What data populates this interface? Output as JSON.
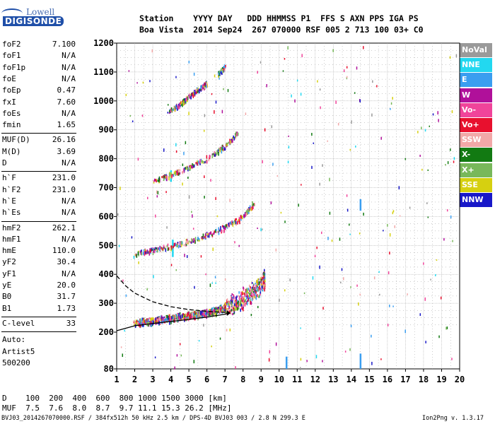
{
  "logo": {
    "line1": "Lowell",
    "line2": "DIGISONDE"
  },
  "header": {
    "row1": "Station    YYYY DAY   DDD HHMMSS P1  FFS S AXN PPS IGA PS",
    "row2": "Boa Vista  2014 Sep24  267 070000 RSF 005 2 713 100 03+ C0"
  },
  "params_group1": [
    {
      "label": "foF2",
      "value": "7.100"
    },
    {
      "label": "foF1",
      "value": "N/A"
    },
    {
      "label": "foF1p",
      "value": "N/A"
    },
    {
      "label": "foE",
      "value": "N/A"
    },
    {
      "label": "foEp",
      "value": "0.47"
    },
    {
      "label": "fxI",
      "value": "7.60"
    },
    {
      "label": "foEs",
      "value": "N/A"
    },
    {
      "label": "fmin",
      "value": "1.65"
    }
  ],
  "params_group2": [
    {
      "label": "MUF(D)",
      "value": "26.16"
    },
    {
      "label": "M(D)",
      "value": "3.69"
    },
    {
      "label": "D",
      "value": "N/A"
    }
  ],
  "params_group3": [
    {
      "label": "h`F",
      "value": "231.0"
    },
    {
      "label": "h`F2",
      "value": "231.0"
    },
    {
      "label": "h`E",
      "value": "N/A"
    },
    {
      "label": "h`Es",
      "value": "N/A"
    }
  ],
  "params_group4": [
    {
      "label": "hmF2",
      "value": "262.1"
    },
    {
      "label": "hmF1",
      "value": "N/A"
    },
    {
      "label": "hmE",
      "value": "110.0"
    },
    {
      "label": "yF2",
      "value": "30.4"
    },
    {
      "label": "yF1",
      "value": "N/A"
    },
    {
      "label": "yE",
      "value": "20.0"
    },
    {
      "label": "B0",
      "value": "31.7"
    },
    {
      "label": "B1",
      "value": "1.73"
    }
  ],
  "clevel": {
    "label": "C-level",
    "value": "33"
  },
  "auto_notes": [
    "Auto:",
    "Artist5",
    "500200"
  ],
  "legend": [
    {
      "label": "NoVal",
      "color": "#9a9a9a"
    },
    {
      "label": "NNE",
      "color": "#22d8f0"
    },
    {
      "label": "E",
      "color": "#3a9ef0"
    },
    {
      "label": "W",
      "color": "#b0109a"
    },
    {
      "label": "Vo-",
      "color": "#f0449a"
    },
    {
      "label": "Vo+",
      "color": "#e8102e"
    },
    {
      "label": "SSW",
      "color": "#f2a8a8"
    },
    {
      "label": "X-",
      "color": "#127a12"
    },
    {
      "label": "X+",
      "color": "#78b85a"
    },
    {
      "label": "SSE",
      "color": "#d6d010"
    },
    {
      "label": "NNW",
      "color": "#1818c8"
    }
  ],
  "mufd_table": {
    "row1": "D    100  200  400  600  800 1000 1500 3000 [km]",
    "row2": "MUF  7.5  7.6  8.0  8.7  9.7 11.1 15.3 26.2 [MHz]"
  },
  "footer": {
    "left": "BVJ03_2014267070000.RSF / 384fx512h 50 kHz 2.5 km / DPS-4D BVJ03 003 / 2.8 N 299.3 E",
    "right": "Ion2Png v. 1.3.17"
  },
  "chart_data": {
    "type": "scatter",
    "x_ticks": [
      1,
      2,
      3,
      4,
      5,
      6,
      7,
      8,
      9,
      10,
      11,
      12,
      13,
      14,
      15,
      16,
      17,
      18,
      19,
      20
    ],
    "y_ticks": [
      80,
      200,
      300,
      400,
      500,
      600,
      700,
      800,
      900,
      1000,
      1100,
      1200
    ],
    "xlim": [
      1,
      20
    ],
    "ylim": [
      80,
      1200
    ],
    "grid": true,
    "legend_position": "right",
    "traces": [
      {
        "name": "F2 O-trace 1st hop",
        "x": [
          1.9,
          2.5,
          3.0,
          3.5,
          4.0,
          4.5,
          5.0,
          5.5,
          6.0,
          6.5,
          7.0
        ],
        "y": [
          232,
          236,
          240,
          244,
          249,
          254,
          258,
          263,
          268,
          276,
          290
        ]
      },
      {
        "name": "F2 X-trace 1st hop",
        "x": [
          7.0,
          7.5,
          8.0,
          8.5,
          9.0,
          9.2
        ],
        "y": [
          290,
          300,
          318,
          340,
          365,
          390
        ]
      },
      {
        "name": "F2 2nd hop",
        "x": [
          2.0,
          3.0,
          4.0,
          5.0,
          6.0,
          7.0,
          8.0,
          8.6
        ],
        "y": [
          472,
          485,
          498,
          515,
          535,
          565,
          600,
          650
        ]
      },
      {
        "name": "F2 3rd hop",
        "x": [
          3.0,
          4.0,
          5.0,
          6.0,
          7.0,
          7.7
        ],
        "y": [
          722,
          745,
          772,
          802,
          845,
          890
        ]
      },
      {
        "name": "F2 4th hop",
        "x": [
          3.8,
          4.5,
          5.0,
          5.5,
          6.0
        ],
        "y": [
          960,
          990,
          1015,
          1040,
          1060
        ]
      },
      {
        "name": "F2 5th hop",
        "x": [
          6.6,
          7.0
        ],
        "y": [
          1095,
          1120
        ]
      }
    ],
    "model_lines": [
      {
        "name": "profile solid",
        "x": [
          1,
          2,
          3,
          4,
          5,
          6,
          7,
          7.3
        ],
        "y": [
          205,
          222,
          230,
          237,
          244,
          252,
          262,
          266
        ]
      },
      {
        "name": "profile dashed",
        "x": [
          1,
          1.5,
          2,
          3,
          4,
          5,
          6,
          7
        ],
        "y": [
          395,
          360,
          335,
          305,
          288,
          278,
          272,
          268
        ]
      }
    ]
  }
}
